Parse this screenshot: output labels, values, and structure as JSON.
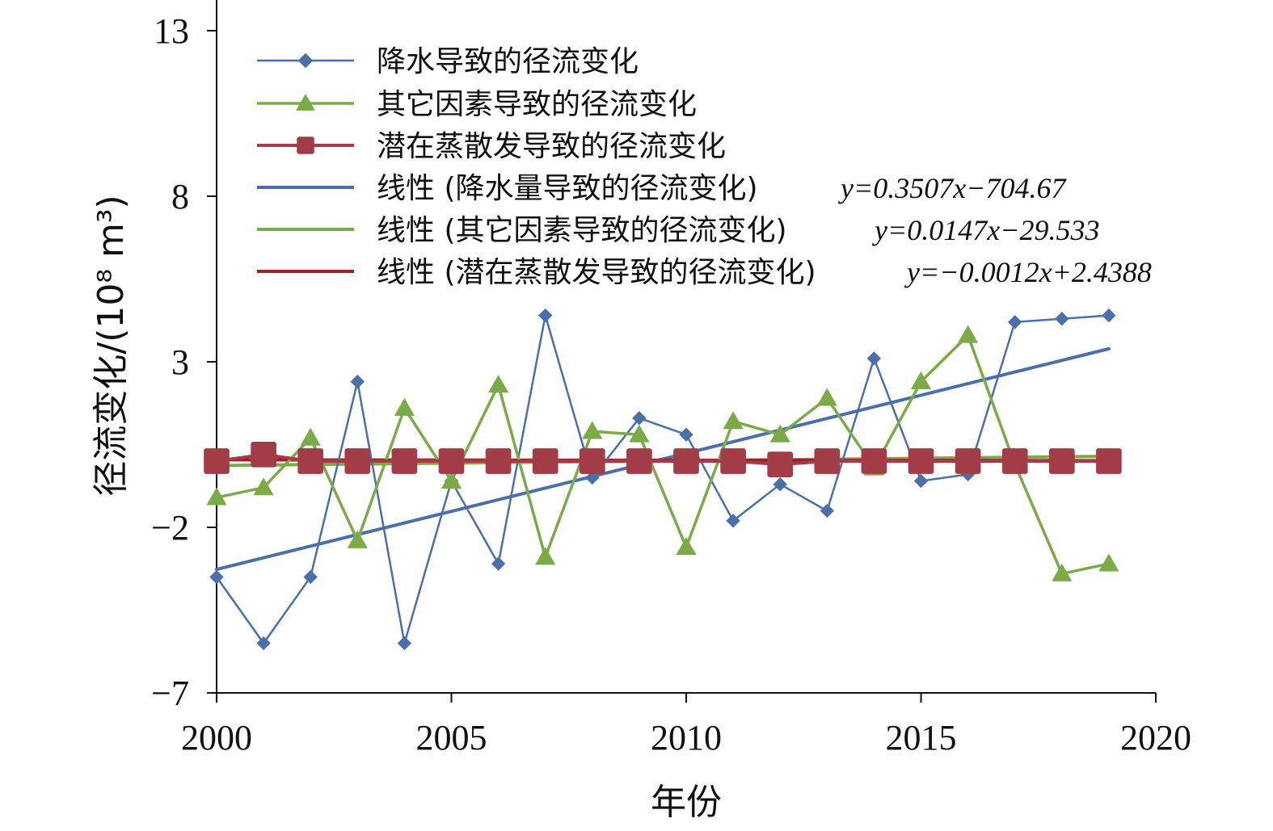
{
  "chart_data": {
    "type": "line",
    "xlabel": "年份",
    "ylabel": "径流变化/(10⁸ m³)",
    "xlim": [
      2000,
      2020
    ],
    "ylim": [
      -7,
      13
    ],
    "x_ticks": [
      2000,
      2005,
      2010,
      2015,
      2020
    ],
    "y_ticks": [
      -7,
      -2,
      3,
      8,
      13
    ],
    "x_tick_labels": [
      "2000",
      "2005",
      "2010",
      "2015",
      "2020"
    ],
    "y_tick_labels": [
      "−7",
      "−2",
      "3",
      "8",
      "13"
    ],
    "grid": false,
    "legend_position": "top-left",
    "x": [
      2000,
      2001,
      2002,
      2003,
      2004,
      2005,
      2006,
      2007,
      2008,
      2009,
      2010,
      2011,
      2012,
      2013,
      2014,
      2015,
      2016,
      2017,
      2018,
      2019
    ],
    "series": [
      {
        "name": "降水导致的径流变化",
        "color": "#4a6fab",
        "marker": "diamond",
        "values": [
          -3.5,
          -5.5,
          -3.5,
          2.4,
          -5.5,
          -0.6,
          -3.1,
          4.4,
          -0.5,
          1.3,
          0.8,
          -1.8,
          -0.7,
          -1.5,
          3.1,
          -0.6,
          -0.4,
          4.2,
          4.3,
          4.4
        ]
      },
      {
        "name": "其它因素导致的径流变化",
        "color": "#7aab47",
        "marker": "triangle",
        "values": [
          -1.1,
          -0.8,
          0.7,
          -2.4,
          1.6,
          -0.6,
          2.3,
          -2.9,
          0.9,
          0.8,
          -2.6,
          1.2,
          0.8,
          1.9,
          -0.2,
          2.4,
          3.8,
          -0.1,
          -3.4,
          -3.1
        ]
      },
      {
        "name": "潜在蒸散发导致的径流变化",
        "color": "#a23c46",
        "marker": "square",
        "values": [
          0.0,
          0.2,
          0.0,
          0.0,
          0.0,
          0.0,
          0.0,
          0.0,
          0.0,
          0.0,
          0.0,
          0.0,
          -0.1,
          0.0,
          0.0,
          0.0,
          0.0,
          0.0,
          0.0,
          0.0
        ]
      }
    ],
    "trendlines": [
      {
        "name": "线性 (降水量导致的径流变化)",
        "equation": "y=0.3507x−704.67",
        "slope": 0.3507,
        "intercept": -704.67,
        "color": "#4a6fab",
        "x_range": [
          2000,
          2019
        ]
      },
      {
        "name": "线性 (其它因素导致的径流变化)",
        "equation": "y=0.0147x−29.533",
        "slope": 0.0147,
        "intercept": -29.533,
        "color": "#7aab47",
        "x_range": [
          2000,
          2019
        ]
      },
      {
        "name": "线性 (潜在蒸散发导致的径流变化)",
        "equation": "y=−0.0012x+2.4388",
        "slope": -0.0012,
        "intercept": 2.4388,
        "color": "#a01e28",
        "x_range": [
          2000,
          2019
        ]
      }
    ]
  }
}
